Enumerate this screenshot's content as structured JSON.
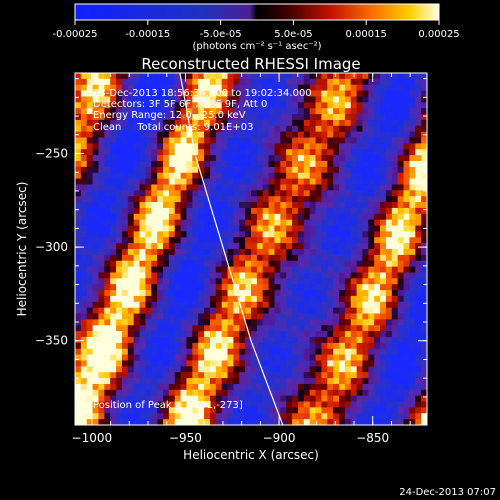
{
  "chart_data": {
    "type": "heatmap",
    "title": "Reconstructed RHESSI Image",
    "xlabel": "Heliocentric X (arcsec)",
    "ylabel": "Heliocentric Y (arcsec)",
    "xlim": [
      -1009,
      -821
    ],
    "ylim": [
      -395,
      -207
    ],
    "x_ticks": [
      -1000,
      -950,
      -900,
      -850
    ],
    "y_ticks": [
      -250,
      -300,
      -350
    ],
    "colorbar": {
      "range": [
        -0.00025,
        0.00025
      ],
      "tick_values": [
        -0.00025,
        -0.00015,
        -5e-05,
        5e-05,
        0.00015,
        0.00025
      ],
      "tick_labels": [
        "-0.00025",
        "-0.00015",
        "-5.0e-05",
        "5.0e-05",
        "0.00015",
        "0.00025"
      ],
      "units_label": "(photons cm⁻² s⁻¹ asec⁻²)"
    },
    "info_lines": [
      "23-Dec-2013 18:56:34.000 to 19:02:34.000",
      "Detectors: 3F 5F 6F 7F 8F 9F, Att 0",
      "Energy Range: 12.0 - 25.0 keV",
      "Clean     Total counts: 9.01E+03"
    ],
    "peak_label": "Position of Peak = [-851,-273]",
    "peak": [
      -851,
      -273
    ],
    "limb_points": [
      [
        -953,
        -207
      ],
      [
        -945,
        -250
      ],
      [
        -930,
        -300
      ],
      [
        -915,
        -350
      ],
      [
        -898,
        -395
      ]
    ],
    "timestamp": "24-Dec-2013 07:07"
  }
}
